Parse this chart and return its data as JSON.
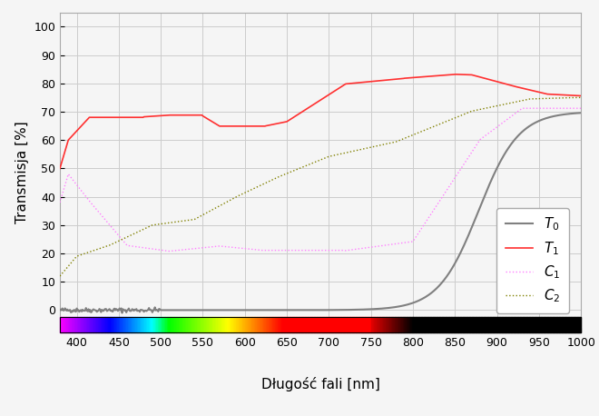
{
  "xlabel": "Długość fali [nm]",
  "ylabel": "Transmisja [%]",
  "xlim": [
    380,
    1000
  ],
  "ylim": [
    -8,
    105
  ],
  "yticks": [
    0,
    10,
    20,
    30,
    40,
    50,
    60,
    70,
    80,
    90,
    100
  ],
  "xticks": [
    400,
    450,
    500,
    550,
    600,
    650,
    700,
    750,
    800,
    850,
    900,
    950,
    1000
  ],
  "T0_color": "#808080",
  "T1_color": "#ff3030",
  "C1_color": "#ff80ff",
  "C2_color": "#808000",
  "background_color": "#f5f5f5",
  "grid_color": "#cccccc"
}
